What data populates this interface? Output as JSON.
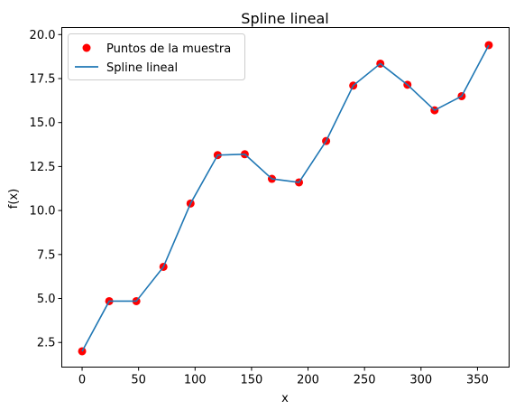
{
  "chart_data": {
    "type": "line",
    "title": "Spline lineal",
    "xlabel": "x",
    "ylabel": "f(x)",
    "xlim": [
      -18,
      378
    ],
    "ylim": [
      1.1,
      20.4
    ],
    "xticks": [
      0,
      50,
      100,
      150,
      200,
      250,
      300,
      350
    ],
    "yticks": [
      2.5,
      5.0,
      7.5,
      10.0,
      12.5,
      15.0,
      17.5,
      20.0
    ],
    "xtick_labels": [
      "0",
      "50",
      "100",
      "150",
      "200",
      "250",
      "300",
      "350"
    ],
    "ytick_labels": [
      "2.5",
      "5.0",
      "7.5",
      "10.0",
      "12.5",
      "15.0",
      "17.5",
      "20.0"
    ],
    "grid": false,
    "legend_position": "top-left",
    "series": [
      {
        "name": "Puntos de la muestra",
        "kind": "scatter",
        "color": "#ff0000",
        "x": [
          0,
          24,
          48,
          72,
          96,
          120,
          144,
          168,
          192,
          216,
          240,
          264,
          288,
          312,
          336,
          360
        ],
        "y": [
          2.0,
          4.85,
          4.85,
          6.8,
          10.4,
          13.15,
          13.2,
          11.8,
          11.6,
          13.95,
          17.1,
          18.35,
          17.15,
          15.7,
          16.5,
          19.4
        ]
      },
      {
        "name": "Spline lineal",
        "kind": "line",
        "color": "#1f77b4",
        "x": [
          0,
          24,
          48,
          72,
          96,
          120,
          144,
          168,
          192,
          216,
          240,
          264,
          288,
          312,
          336,
          360
        ],
        "y": [
          2.0,
          4.85,
          4.85,
          6.8,
          10.4,
          13.15,
          13.2,
          11.8,
          11.6,
          13.95,
          17.1,
          18.35,
          17.15,
          15.7,
          16.5,
          19.4
        ]
      }
    ]
  }
}
